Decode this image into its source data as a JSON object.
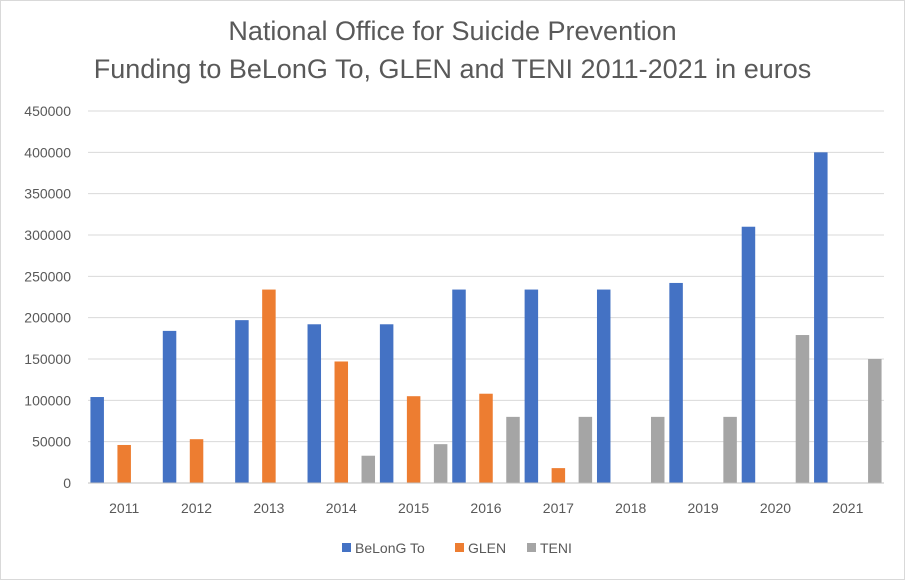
{
  "chart_data": {
    "type": "bar",
    "title_line1": "National Office for Suicide Prevention",
    "title_line2": "Funding to BeLonG To, GLEN and TENI 2011-2021 in euros",
    "xlabel": "",
    "ylabel": "",
    "ylim": [
      0,
      450000
    ],
    "yticks": [
      "0",
      "50000",
      "100000",
      "150000",
      "200000",
      "250000",
      "300000",
      "350000",
      "400000",
      "450000"
    ],
    "grid": true,
    "legend_position": "bottom",
    "categories": [
      "2011",
      "2012",
      "2013",
      "2014",
      "2015",
      "2016",
      "2017",
      "2018",
      "2019",
      "2020",
      "2021"
    ],
    "series": [
      {
        "name": "BeLonG To",
        "color": "#4472c4",
        "values": [
          104000,
          184000,
          197000,
          192000,
          192000,
          234000,
          234000,
          234000,
          242000,
          310000,
          400000
        ]
      },
      {
        "name": "GLEN",
        "color": "#ed7d31",
        "values": [
          46000,
          53000,
          234000,
          147000,
          105000,
          108000,
          18000,
          0,
          0,
          0,
          0
        ]
      },
      {
        "name": "TENI",
        "color": "#a5a5a5",
        "values": [
          0,
          0,
          0,
          33000,
          47000,
          80000,
          80000,
          80000,
          80000,
          179000,
          150000
        ]
      }
    ]
  }
}
